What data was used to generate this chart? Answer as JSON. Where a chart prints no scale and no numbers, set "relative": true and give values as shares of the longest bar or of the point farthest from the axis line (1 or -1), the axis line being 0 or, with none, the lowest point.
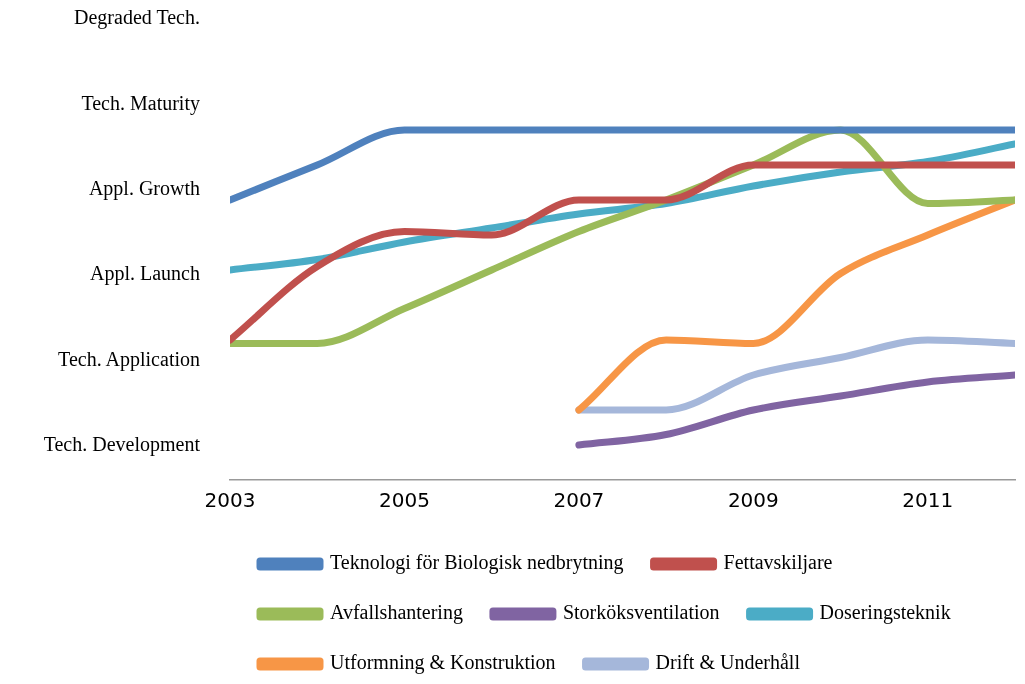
{
  "chart_data": {
    "type": "line",
    "relative": true,
    "x": [
      2003,
      2004,
      2005,
      2006,
      2007,
      2008,
      2009,
      2010,
      2011,
      2012
    ],
    "xlim": [
      2003,
      2012
    ],
    "xticks": [
      2003,
      2005,
      2007,
      2009,
      2011
    ],
    "annotations": [
      "Tech. Development",
      "Tech. Application",
      "Appl. Launch",
      "Appl. Growth",
      "Tech. Maturity",
      "Degraded Tech."
    ],
    "grid": false,
    "legend": "bottom",
    "marker": "none",
    "line_style": "solid",
    "series": [
      {
        "name": "Teknologi för Biologisk nedbrytning",
        "color": "#4f81bd",
        "values": [
          0.8,
          0.9,
          1,
          1,
          1,
          1,
          1,
          1,
          1,
          1
        ]
      },
      {
        "name": "Fettavskiljare",
        "color": "#c0504d",
        "values": [
          0.4,
          0.61,
          0.71,
          0.7,
          0.8,
          0.8,
          0.9,
          0.9,
          0.9,
          0.9
        ]
      },
      {
        "name": "Avfallshantering",
        "color": "#9bbb59",
        "values": [
          0.39,
          0.39,
          0.49,
          0.6,
          0.71,
          0.8,
          0.9,
          1,
          0.79,
          0.8
        ]
      },
      {
        "name": "Storköksventilation",
        "color": "#8064a2",
        "values": [
          null,
          null,
          null,
          null,
          0.1,
          0.13,
          0.2,
          0.24,
          0.28,
          0.3
        ]
      },
      {
        "name": "Doseringsteknik",
        "color": "#4bacc6",
        "values": [
          0.6,
          0.63,
          0.68,
          0.72,
          0.76,
          0.79,
          0.84,
          0.88,
          0.91,
          0.96
        ]
      },
      {
        "name": "Utformning & Konstruktion",
        "color": "#f79646",
        "values": [
          null,
          null,
          null,
          null,
          0.2,
          0.4,
          0.39,
          0.59,
          0.7,
          0.8
        ]
      },
      {
        "name": "Drift & Underhåll",
        "color": "#a5b7da",
        "values": [
          null,
          null,
          null,
          null,
          0.2,
          0.2,
          0.3,
          0.35,
          0.4,
          0.39
        ]
      }
    ]
  }
}
